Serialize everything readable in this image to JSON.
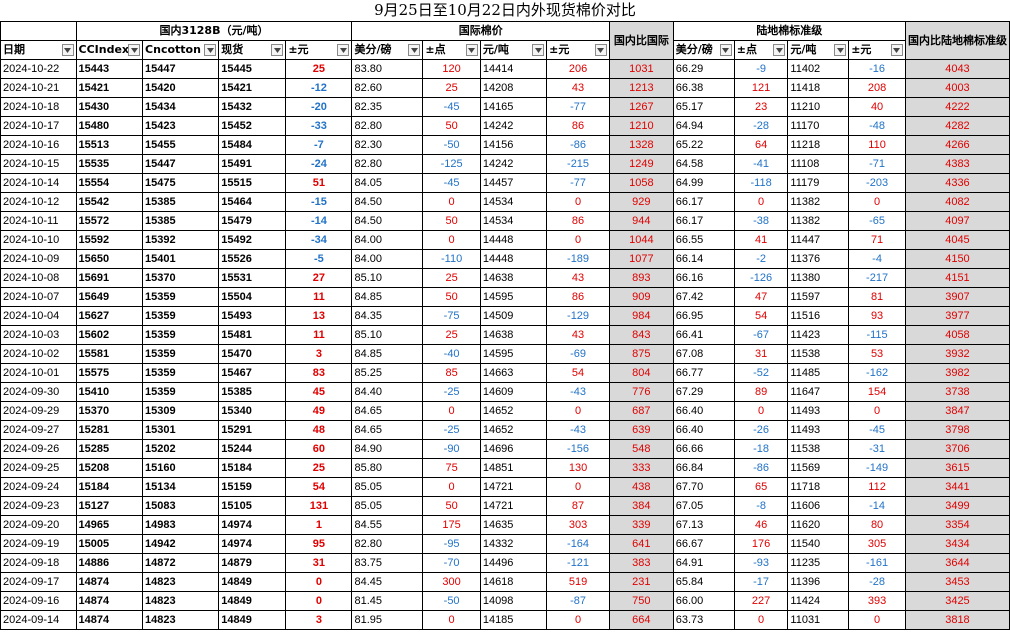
{
  "title": "9月25日至10月22日内外现货棉价对比",
  "groups": {
    "domestic": "国内3128B（元/吨）",
    "intl": "国际棉价",
    "cn_vs_intl": "国内比国际",
    "land": "陆地棉标准级",
    "cn_vs_land": "国内比陆地棉标准级"
  },
  "headers": [
    "日期",
    "CCIndex",
    "Cncotton",
    "现货",
    "±元",
    "美分/磅",
    "±点",
    "元/吨",
    "±元",
    "美分/磅",
    "±点",
    "元/吨",
    "±元"
  ],
  "colors": {
    "up": "#e00000",
    "down": "#2273c8",
    "shade": "#d9d9d9"
  },
  "rows": [
    [
      "2024-10-22",
      "15443",
      "15447",
      "15445",
      "25",
      "83.80",
      "120",
      "14414",
      "206",
      "1031",
      "66.29",
      "-9",
      "11402",
      "-16",
      "4043"
    ],
    [
      "2024-10-21",
      "15421",
      "15420",
      "15421",
      "-12",
      "82.60",
      "25",
      "14208",
      "43",
      "1213",
      "66.38",
      "121",
      "11418",
      "208",
      "4003"
    ],
    [
      "2024-10-18",
      "15430",
      "15434",
      "15432",
      "-20",
      "82.35",
      "-45",
      "14165",
      "-77",
      "1267",
      "65.17",
      "23",
      "11210",
      "40",
      "4222"
    ],
    [
      "2024-10-17",
      "15480",
      "15423",
      "15452",
      "-33",
      "82.80",
      "50",
      "14242",
      "86",
      "1210",
      "64.94",
      "-28",
      "11170",
      "-48",
      "4282"
    ],
    [
      "2024-10-16",
      "15513",
      "15455",
      "15484",
      "-7",
      "82.30",
      "-50",
      "14156",
      "-86",
      "1328",
      "65.22",
      "64",
      "11218",
      "110",
      "4266"
    ],
    [
      "2024-10-15",
      "15535",
      "15447",
      "15491",
      "-24",
      "82.80",
      "-125",
      "14242",
      "-215",
      "1249",
      "64.58",
      "-41",
      "11108",
      "-71",
      "4383"
    ],
    [
      "2024-10-14",
      "15554",
      "15475",
      "15515",
      "51",
      "84.05",
      "-45",
      "14457",
      "-77",
      "1058",
      "64.99",
      "-118",
      "11179",
      "-203",
      "4336"
    ],
    [
      "2024-10-12",
      "15542",
      "15385",
      "15464",
      "-15",
      "84.50",
      "0",
      "14534",
      "0",
      "929",
      "66.17",
      "0",
      "11382",
      "0",
      "4082"
    ],
    [
      "2024-10-11",
      "15572",
      "15385",
      "15479",
      "-14",
      "84.50",
      "50",
      "14534",
      "86",
      "944",
      "66.17",
      "-38",
      "11382",
      "-65",
      "4097"
    ],
    [
      "2024-10-10",
      "15592",
      "15392",
      "15492",
      "-34",
      "84.00",
      "0",
      "14448",
      "0",
      "1044",
      "66.55",
      "41",
      "11447",
      "71",
      "4045"
    ],
    [
      "2024-10-09",
      "15650",
      "15401",
      "15526",
      "-5",
      "84.00",
      "-110",
      "14448",
      "-189",
      "1077",
      "66.14",
      "-2",
      "11376",
      "-4",
      "4150"
    ],
    [
      "2024-10-08",
      "15691",
      "15370",
      "15531",
      "27",
      "85.10",
      "25",
      "14638",
      "43",
      "893",
      "66.16",
      "-126",
      "11380",
      "-217",
      "4151"
    ],
    [
      "2024-10-07",
      "15649",
      "15359",
      "15504",
      "11",
      "84.85",
      "50",
      "14595",
      "86",
      "909",
      "67.42",
      "47",
      "11597",
      "81",
      "3907"
    ],
    [
      "2024-10-04",
      "15627",
      "15359",
      "15493",
      "13",
      "84.35",
      "-75",
      "14509",
      "-129",
      "984",
      "66.95",
      "54",
      "11516",
      "93",
      "3977"
    ],
    [
      "2024-10-03",
      "15602",
      "15359",
      "15481",
      "11",
      "85.10",
      "25",
      "14638",
      "43",
      "843",
      "66.41",
      "-67",
      "11423",
      "-115",
      "4058"
    ],
    [
      "2024-10-02",
      "15581",
      "15359",
      "15470",
      "3",
      "84.85",
      "-40",
      "14595",
      "-69",
      "875",
      "67.08",
      "31",
      "11538",
      "53",
      "3932"
    ],
    [
      "2024-10-01",
      "15575",
      "15359",
      "15467",
      "83",
      "85.25",
      "85",
      "14663",
      "54",
      "804",
      "66.77",
      "-52",
      "11485",
      "-162",
      "3982"
    ],
    [
      "2024-09-30",
      "15410",
      "15359",
      "15385",
      "45",
      "84.40",
      "-25",
      "14609",
      "-43",
      "776",
      "67.29",
      "89",
      "11647",
      "154",
      "3738"
    ],
    [
      "2024-09-29",
      "15370",
      "15309",
      "15340",
      "49",
      "84.65",
      "0",
      "14652",
      "0",
      "687",
      "66.40",
      "0",
      "11493",
      "0",
      "3847"
    ],
    [
      "2024-09-27",
      "15281",
      "15301",
      "15291",
      "48",
      "84.65",
      "-25",
      "14652",
      "-43",
      "639",
      "66.40",
      "-26",
      "11493",
      "-45",
      "3798"
    ],
    [
      "2024-09-26",
      "15285",
      "15202",
      "15244",
      "60",
      "84.90",
      "-90",
      "14696",
      "-156",
      "548",
      "66.66",
      "-18",
      "11538",
      "-31",
      "3706"
    ],
    [
      "2024-09-25",
      "15208",
      "15160",
      "15184",
      "25",
      "85.80",
      "75",
      "14851",
      "130",
      "333",
      "66.84",
      "-86",
      "11569",
      "-149",
      "3615"
    ],
    [
      "2024-09-24",
      "15184",
      "15134",
      "15159",
      "54",
      "85.05",
      "0",
      "14721",
      "0",
      "438",
      "67.70",
      "65",
      "11718",
      "112",
      "3441"
    ],
    [
      "2024-09-23",
      "15127",
      "15083",
      "15105",
      "131",
      "85.05",
      "50",
      "14721",
      "87",
      "384",
      "67.05",
      "-8",
      "11606",
      "-14",
      "3499"
    ],
    [
      "2024-09-20",
      "14965",
      "14983",
      "14974",
      "1",
      "84.55",
      "175",
      "14635",
      "303",
      "339",
      "67.13",
      "46",
      "11620",
      "80",
      "3354"
    ],
    [
      "2024-09-19",
      "15005",
      "14942",
      "14974",
      "95",
      "82.80",
      "-95",
      "14332",
      "-164",
      "641",
      "66.67",
      "176",
      "11540",
      "305",
      "3434"
    ],
    [
      "2024-09-18",
      "14886",
      "14872",
      "14879",
      "31",
      "83.75",
      "-70",
      "14496",
      "-121",
      "383",
      "64.91",
      "-93",
      "11235",
      "-161",
      "3644"
    ],
    [
      "2024-09-17",
      "14874",
      "14823",
      "14849",
      "0",
      "84.45",
      "300",
      "14618",
      "519",
      "231",
      "65.84",
      "-17",
      "11396",
      "-28",
      "3453"
    ],
    [
      "2024-09-16",
      "14874",
      "14823",
      "14849",
      "0",
      "81.45",
      "-50",
      "14098",
      "-87",
      "750",
      "66.00",
      "227",
      "11424",
      "393",
      "3425"
    ],
    [
      "2024-09-14",
      "14874",
      "14823",
      "14849",
      "3",
      "81.95",
      "0",
      "14185",
      "0",
      "664",
      "63.73",
      "0",
      "11031",
      "0",
      "3818"
    ]
  ]
}
